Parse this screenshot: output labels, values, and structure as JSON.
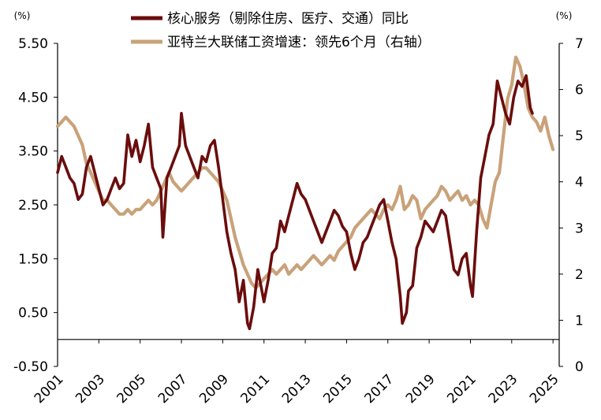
{
  "chart_data": {
    "type": "line",
    "x_axis": {
      "tick_labels": [
        "2001",
        "2003",
        "2005",
        "2007",
        "2009",
        "2011",
        "2013",
        "2015",
        "2017",
        "2019",
        "2021",
        "2023",
        "2025"
      ],
      "range": [
        2001.0,
        2025.3
      ]
    },
    "y_left": {
      "unit_label": "(%)",
      "tick_labels": [
        "5.50",
        "4.50",
        "3.50",
        "2.50",
        "1.50",
        "0.50",
        "-0.50"
      ],
      "range": [
        -0.5,
        5.5
      ]
    },
    "y_right": {
      "unit_label": "(%)",
      "tick_labels": [
        "7",
        "6",
        "5",
        "4",
        "3",
        "2",
        "1",
        "0"
      ],
      "range": [
        0,
        7
      ]
    },
    "legend_position": "top-center",
    "grid": false,
    "series": [
      {
        "name": "核心服务（剔除住房、医疗、交通）同比",
        "axis": "left",
        "color": "#6b0d0d",
        "points": [
          [
            2001.0,
            3.1
          ],
          [
            2001.2,
            3.4
          ],
          [
            2001.4,
            3.2
          ],
          [
            2001.6,
            3.0
          ],
          [
            2001.8,
            2.9
          ],
          [
            2002.0,
            2.6
          ],
          [
            2002.2,
            2.7
          ],
          [
            2002.4,
            3.2
          ],
          [
            2002.6,
            3.4
          ],
          [
            2002.8,
            3.1
          ],
          [
            2003.0,
            2.8
          ],
          [
            2003.2,
            2.5
          ],
          [
            2003.4,
            2.6
          ],
          [
            2003.6,
            2.8
          ],
          [
            2003.8,
            3.0
          ],
          [
            2004.0,
            2.8
          ],
          [
            2004.2,
            2.9
          ],
          [
            2004.4,
            3.8
          ],
          [
            2004.6,
            3.4
          ],
          [
            2004.8,
            3.7
          ],
          [
            2005.0,
            3.3
          ],
          [
            2005.2,
            3.6
          ],
          [
            2005.4,
            4.0
          ],
          [
            2005.6,
            3.2
          ],
          [
            2005.8,
            3.0
          ],
          [
            2006.0,
            2.8
          ],
          [
            2006.1,
            1.9
          ],
          [
            2006.3,
            3.0
          ],
          [
            2006.5,
            3.2
          ],
          [
            2006.7,
            3.4
          ],
          [
            2006.9,
            3.6
          ],
          [
            2007.0,
            4.2
          ],
          [
            2007.2,
            3.6
          ],
          [
            2007.4,
            3.4
          ],
          [
            2007.6,
            3.2
          ],
          [
            2007.8,
            3.0
          ],
          [
            2008.0,
            3.4
          ],
          [
            2008.2,
            3.3
          ],
          [
            2008.4,
            3.6
          ],
          [
            2008.6,
            3.7
          ],
          [
            2008.8,
            3.2
          ],
          [
            2009.0,
            2.6
          ],
          [
            2009.2,
            2.0
          ],
          [
            2009.4,
            1.6
          ],
          [
            2009.6,
            1.3
          ],
          [
            2009.8,
            0.7
          ],
          [
            2010.0,
            1.1
          ],
          [
            2010.2,
            0.3
          ],
          [
            2010.3,
            0.2
          ],
          [
            2010.5,
            0.6
          ],
          [
            2010.7,
            1.3
          ],
          [
            2010.9,
            0.9
          ],
          [
            2011.0,
            0.7
          ],
          [
            2011.2,
            1.1
          ],
          [
            2011.4,
            1.6
          ],
          [
            2011.6,
            1.7
          ],
          [
            2011.8,
            2.2
          ],
          [
            2012.0,
            2.0
          ],
          [
            2012.2,
            2.3
          ],
          [
            2012.4,
            2.6
          ],
          [
            2012.6,
            2.9
          ],
          [
            2012.8,
            2.7
          ],
          [
            2013.0,
            2.6
          ],
          [
            2013.2,
            2.4
          ],
          [
            2013.4,
            2.2
          ],
          [
            2013.6,
            2.0
          ],
          [
            2013.8,
            1.8
          ],
          [
            2014.0,
            2.0
          ],
          [
            2014.2,
            2.2
          ],
          [
            2014.4,
            2.4
          ],
          [
            2014.6,
            2.3
          ],
          [
            2014.8,
            2.1
          ],
          [
            2015.0,
            2.0
          ],
          [
            2015.2,
            1.6
          ],
          [
            2015.4,
            1.3
          ],
          [
            2015.6,
            1.5
          ],
          [
            2015.8,
            1.8
          ],
          [
            2016.0,
            1.9
          ],
          [
            2016.2,
            2.1
          ],
          [
            2016.4,
            2.3
          ],
          [
            2016.6,
            2.5
          ],
          [
            2016.8,
            2.6
          ],
          [
            2017.0,
            2.2
          ],
          [
            2017.2,
            1.8
          ],
          [
            2017.4,
            1.5
          ],
          [
            2017.6,
            0.8
          ],
          [
            2017.7,
            0.3
          ],
          [
            2017.9,
            0.5
          ],
          [
            2018.0,
            0.9
          ],
          [
            2018.2,
            1.0
          ],
          [
            2018.4,
            1.7
          ],
          [
            2018.6,
            1.9
          ],
          [
            2018.8,
            2.2
          ],
          [
            2019.0,
            2.1
          ],
          [
            2019.2,
            2.0
          ],
          [
            2019.4,
            2.2
          ],
          [
            2019.6,
            2.4
          ],
          [
            2019.8,
            2.3
          ],
          [
            2020.0,
            1.8
          ],
          [
            2020.2,
            1.3
          ],
          [
            2020.4,
            1.2
          ],
          [
            2020.6,
            1.5
          ],
          [
            2020.8,
            1.6
          ],
          [
            2021.0,
            1.0
          ],
          [
            2021.1,
            0.8
          ],
          [
            2021.3,
            2.0
          ],
          [
            2021.5,
            3.0
          ],
          [
            2021.7,
            3.4
          ],
          [
            2021.9,
            3.8
          ],
          [
            2022.1,
            4.0
          ],
          [
            2022.3,
            4.8
          ],
          [
            2022.5,
            4.5
          ],
          [
            2022.7,
            4.2
          ],
          [
            2022.9,
            4.0
          ],
          [
            2023.1,
            4.5
          ],
          [
            2023.3,
            4.8
          ],
          [
            2023.5,
            4.7
          ],
          [
            2023.7,
            4.9
          ],
          [
            2023.9,
            4.3
          ],
          [
            2024.0,
            4.2
          ]
        ]
      },
      {
        "name": "亚特兰大联储工资增速：领先6个月（右轴）",
        "axis": "right",
        "color": "#c9a27a",
        "points": [
          [
            2001.0,
            5.2
          ],
          [
            2001.2,
            5.3
          ],
          [
            2001.4,
            5.4
          ],
          [
            2001.6,
            5.3
          ],
          [
            2001.8,
            5.2
          ],
          [
            2002.0,
            5.0
          ],
          [
            2002.2,
            4.8
          ],
          [
            2002.4,
            4.4
          ],
          [
            2002.6,
            4.2
          ],
          [
            2002.8,
            4.0
          ],
          [
            2003.0,
            3.8
          ],
          [
            2003.2,
            3.6
          ],
          [
            2003.4,
            3.6
          ],
          [
            2003.6,
            3.5
          ],
          [
            2003.8,
            3.4
          ],
          [
            2004.0,
            3.3
          ],
          [
            2004.2,
            3.3
          ],
          [
            2004.4,
            3.4
          ],
          [
            2004.6,
            3.3
          ],
          [
            2004.8,
            3.4
          ],
          [
            2005.0,
            3.4
          ],
          [
            2005.2,
            3.5
          ],
          [
            2005.4,
            3.6
          ],
          [
            2005.6,
            3.5
          ],
          [
            2005.8,
            3.6
          ],
          [
            2006.0,
            3.8
          ],
          [
            2006.2,
            4.0
          ],
          [
            2006.4,
            4.2
          ],
          [
            2006.6,
            4.0
          ],
          [
            2006.8,
            3.9
          ],
          [
            2007.0,
            3.8
          ],
          [
            2007.2,
            3.9
          ],
          [
            2007.4,
            4.0
          ],
          [
            2007.6,
            4.1
          ],
          [
            2007.8,
            4.2
          ],
          [
            2008.0,
            4.3
          ],
          [
            2008.2,
            4.3
          ],
          [
            2008.4,
            4.2
          ],
          [
            2008.6,
            4.1
          ],
          [
            2008.8,
            4.0
          ],
          [
            2009.0,
            3.8
          ],
          [
            2009.2,
            3.6
          ],
          [
            2009.4,
            3.2
          ],
          [
            2009.6,
            2.8
          ],
          [
            2009.8,
            2.5
          ],
          [
            2010.0,
            2.2
          ],
          [
            2010.2,
            2.0
          ],
          [
            2010.4,
            1.8
          ],
          [
            2010.6,
            1.7
          ],
          [
            2010.8,
            1.8
          ],
          [
            2011.0,
            1.9
          ],
          [
            2011.2,
            2.0
          ],
          [
            2011.4,
            2.1
          ],
          [
            2011.6,
            2.0
          ],
          [
            2011.8,
            2.1
          ],
          [
            2012.0,
            2.2
          ],
          [
            2012.2,
            2.0
          ],
          [
            2012.4,
            2.1
          ],
          [
            2012.6,
            2.2
          ],
          [
            2012.8,
            2.1
          ],
          [
            2013.0,
            2.2
          ],
          [
            2013.2,
            2.3
          ],
          [
            2013.4,
            2.4
          ],
          [
            2013.6,
            2.3
          ],
          [
            2013.8,
            2.2
          ],
          [
            2014.0,
            2.3
          ],
          [
            2014.2,
            2.4
          ],
          [
            2014.4,
            2.3
          ],
          [
            2014.6,
            2.5
          ],
          [
            2014.8,
            2.6
          ],
          [
            2015.0,
            2.7
          ],
          [
            2015.2,
            2.8
          ],
          [
            2015.4,
            3.0
          ],
          [
            2015.6,
            3.1
          ],
          [
            2015.8,
            3.2
          ],
          [
            2016.0,
            3.3
          ],
          [
            2016.2,
            3.4
          ],
          [
            2016.4,
            3.3
          ],
          [
            2016.6,
            3.2
          ],
          [
            2016.8,
            3.4
          ],
          [
            2017.0,
            3.5
          ],
          [
            2017.2,
            3.4
          ],
          [
            2017.4,
            3.6
          ],
          [
            2017.6,
            3.9
          ],
          [
            2017.8,
            3.4
          ],
          [
            2018.0,
            3.5
          ],
          [
            2018.2,
            3.7
          ],
          [
            2018.4,
            3.6
          ],
          [
            2018.6,
            3.2
          ],
          [
            2018.8,
            3.4
          ],
          [
            2019.0,
            3.5
          ],
          [
            2019.2,
            3.6
          ],
          [
            2019.4,
            3.7
          ],
          [
            2019.6,
            3.9
          ],
          [
            2019.8,
            3.8
          ],
          [
            2020.0,
            3.6
          ],
          [
            2020.2,
            3.7
          ],
          [
            2020.4,
            3.8
          ],
          [
            2020.6,
            3.6
          ],
          [
            2020.8,
            3.7
          ],
          [
            2021.0,
            3.5
          ],
          [
            2021.2,
            3.6
          ],
          [
            2021.4,
            3.5
          ],
          [
            2021.6,
            3.2
          ],
          [
            2021.8,
            3.0
          ],
          [
            2022.0,
            3.5
          ],
          [
            2022.2,
            4.0
          ],
          [
            2022.4,
            4.2
          ],
          [
            2022.6,
            5.0
          ],
          [
            2022.8,
            5.8
          ],
          [
            2023.0,
            6.1
          ],
          [
            2023.2,
            6.7
          ],
          [
            2023.4,
            6.5
          ],
          [
            2023.6,
            6.1
          ],
          [
            2023.8,
            5.6
          ],
          [
            2024.0,
            5.4
          ],
          [
            2024.2,
            5.3
          ],
          [
            2024.4,
            5.1
          ],
          [
            2024.6,
            5.4
          ],
          [
            2024.8,
            5.0
          ],
          [
            2025.0,
            4.7
          ]
        ]
      }
    ]
  }
}
